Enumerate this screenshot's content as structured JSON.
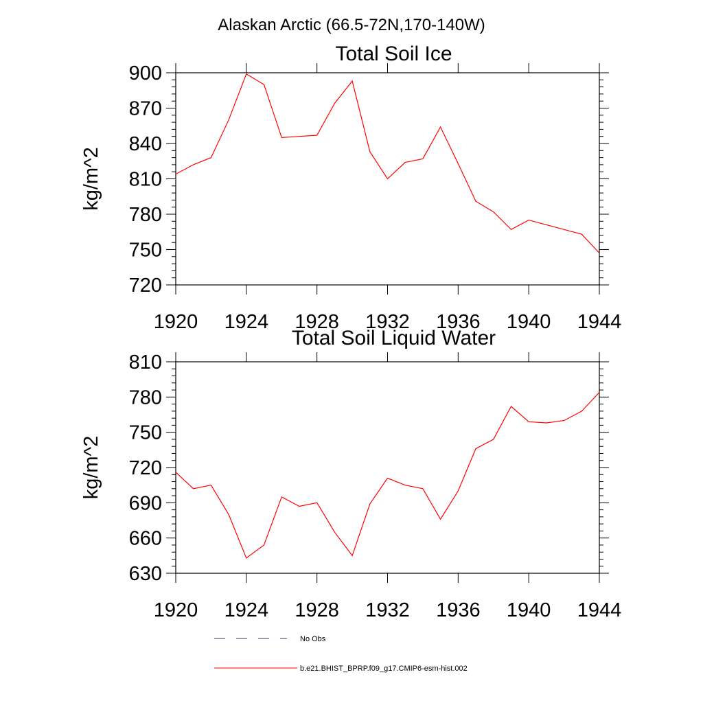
{
  "figure_title": "Alaskan Arctic (66.5-72N,170-140W)",
  "chart_data": [
    {
      "type": "line",
      "title": "Total Soil Ice",
      "xlabel": "",
      "ylabel": "kg/m^2",
      "xlim": [
        1920,
        1944
      ],
      "ylim": [
        720,
        900
      ],
      "xticks": [
        "1920",
        "1924",
        "1928",
        "1932",
        "1936",
        "1940",
        "1944"
      ],
      "yticks": [
        "720",
        "750",
        "780",
        "810",
        "840",
        "870",
        "900"
      ],
      "series": [
        {
          "name": "b.e21.BHIST_BPRP.f09_g17.CMIP6-esm-hist.002",
          "color": "#ff0000",
          "x": [
            1920,
            1921,
            1922,
            1923,
            1924,
            1925,
            1926,
            1927,
            1928,
            1929,
            1930,
            1931,
            1932,
            1933,
            1934,
            1935,
            1936,
            1937,
            1938,
            1939,
            1940,
            1941,
            1942,
            1943,
            1944
          ],
          "y": [
            814,
            822,
            828,
            860,
            899,
            890,
            845,
            846,
            847,
            874,
            893,
            833,
            810,
            824,
            827,
            854,
            823,
            791,
            782,
            767,
            775,
            771,
            767,
            763,
            747
          ]
        }
      ]
    },
    {
      "type": "line",
      "title": "Total Soil Liquid Water",
      "xlabel": "",
      "ylabel": "kg/m^2",
      "xlim": [
        1920,
        1944
      ],
      "ylim": [
        630,
        810
      ],
      "xticks": [
        "1920",
        "1924",
        "1928",
        "1932",
        "1936",
        "1940",
        "1944"
      ],
      "yticks": [
        "630",
        "660",
        "690",
        "720",
        "750",
        "780",
        "810"
      ],
      "series": [
        {
          "name": "b.e21.BHIST_BPRP.f09_g17.CMIP6-esm-hist.002",
          "color": "#ff0000",
          "x": [
            1920,
            1921,
            1922,
            1923,
            1924,
            1925,
            1926,
            1927,
            1928,
            1929,
            1930,
            1931,
            1932,
            1933,
            1934,
            1935,
            1936,
            1937,
            1938,
            1939,
            1940,
            1941,
            1942,
            1943,
            1944
          ],
          "y": [
            716,
            702,
            705,
            680,
            643,
            654,
            695,
            687,
            690,
            665,
            645,
            689,
            711,
            705,
            702,
            676,
            700,
            736,
            744,
            772,
            759,
            758,
            760,
            768,
            784
          ]
        }
      ]
    }
  ],
  "legend": [
    {
      "label": "No Obs",
      "style": "dashed",
      "color": "#333366"
    },
    {
      "label": "b.e21.BHIST_BPRP.f09_g17.CMIP6-esm-hist.002",
      "style": "solid",
      "color": "#ff0000"
    }
  ]
}
